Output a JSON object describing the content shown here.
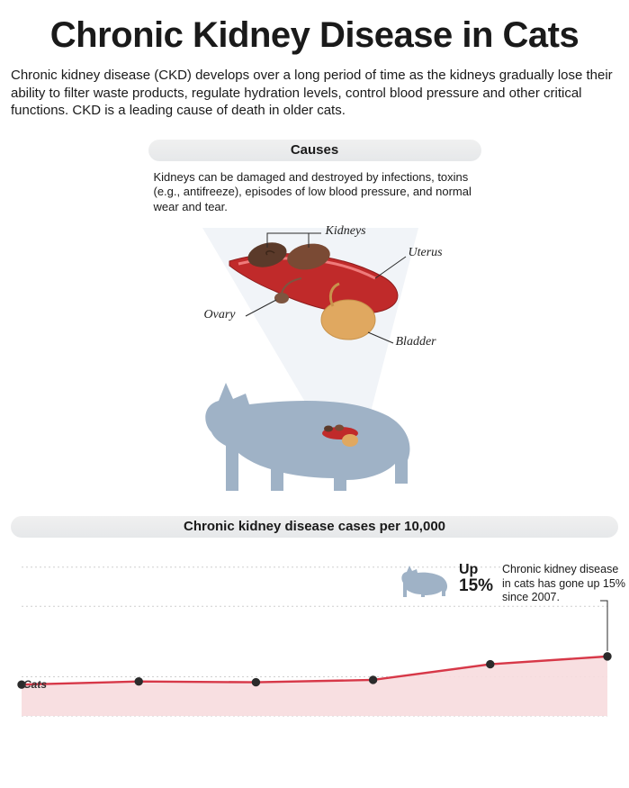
{
  "title": "Chronic Kidney Disease in Cats",
  "title_fontsize": 40,
  "intro": "Chronic kidney disease (CKD) develops over a long period of time as the kidneys gradually lose their ability to filter waste products, regulate hydration levels, control blood pressure and other critical functions. CKD is a leading cause of death in older cats.",
  "intro_fontsize": 15,
  "causes": {
    "header": "Causes",
    "header_fontsize": 15,
    "text": "Kidneys can be damaged and destroyed by infections, toxins (e.g., antifreeze), episodes of low blood pressure, and normal wear and tear.",
    "text_fontsize": 13,
    "labels": {
      "kidneys": "Kidneys",
      "uterus": "Uterus",
      "ovary": "Ovary",
      "bladder": "Bladder"
    },
    "colors": {
      "vessel": "#c02a2a",
      "vessel_shadow": "#8e1d1d",
      "kidney_dark": "#5b3a2a",
      "kidney_mid": "#7a4a34",
      "bladder": "#e0a860",
      "bladder_shadow": "#c8934c",
      "ovary": "#7d5540",
      "cat_silhouette": "#9fb2c6",
      "beam": "#f1f4f8",
      "leader": "#2a2a2a"
    }
  },
  "chart": {
    "header": "Chronic kidney disease cases per 10,000",
    "header_fontsize": 15,
    "type": "line-area",
    "series_label": "Cats",
    "callout_up": "Up",
    "callout_pct": "15%",
    "callout_text": "Chronic kidney disease in cats has gone up 15% since 2007.",
    "data": {
      "x": [
        0,
        1,
        2,
        3,
        4,
        5
      ],
      "y": [
        0.2,
        0.22,
        0.215,
        0.23,
        0.33,
        0.38
      ]
    },
    "xlim": [
      0,
      5
    ],
    "ylim": [
      0,
      1
    ],
    "gridlines_y": [
      0.0,
      0.25,
      0.7,
      0.95
    ],
    "colors": {
      "line": "#d73848",
      "marker_fill": "#2b2b2b",
      "marker_stroke": "#2b2b2b",
      "area_fill": "#f7dcde",
      "gridline": "#cfcfcf",
      "cat_icon": "#9fb2c6",
      "leader": "#2a2a2a"
    },
    "style": {
      "line_width": 2.4,
      "marker_radius": 4.2,
      "grid_dash": "2 3"
    }
  }
}
